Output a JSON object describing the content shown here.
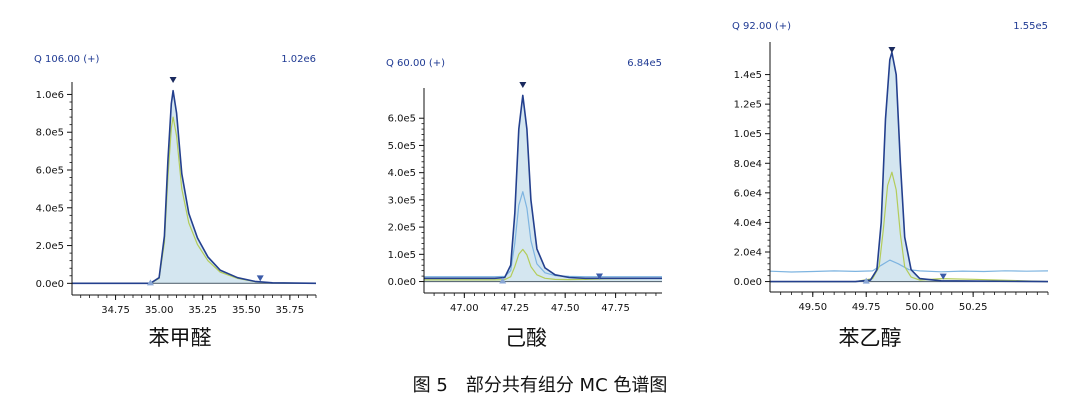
{
  "caption": "图 5　部分共有组分 MC 色谱图",
  "colors": {
    "outline": "#24408e",
    "fill": "#cfe3ee",
    "trace_light": "#7eb4e0",
    "trace_green": "#b3cc5a",
    "baseline": "#5d6c78",
    "marker": "#3b5ba8",
    "marker_light": "#8aa7d6",
    "label_blue": "#1f3a93"
  },
  "chart_data": [
    {
      "type": "line",
      "name": "苯甲醛",
      "ion_label": "Q 106.00 (+)",
      "max_label": "1.02e6",
      "xlim": [
        34.5,
        35.9
      ],
      "ylim": [
        -30000,
        1050000
      ],
      "x_ticks": [
        "34.75",
        "35.00",
        "35.25",
        "35.50",
        "35.75"
      ],
      "y_ticks": [
        "0.0e0",
        "2.0e5",
        "4.0e5",
        "6.0e5",
        "8.0e5",
        "1.0e6"
      ],
      "grid": false,
      "peak_markers": [
        35.08
      ],
      "range_markers": [
        34.95,
        35.58
      ],
      "series": [
        {
          "role": "total",
          "x": [
            34.5,
            34.95,
            35.0,
            35.03,
            35.05,
            35.07,
            35.08,
            35.1,
            35.13,
            35.17,
            35.22,
            35.28,
            35.35,
            35.45,
            35.55,
            35.65,
            35.9
          ],
          "y": [
            0,
            0,
            30000,
            250000,
            650000,
            950000,
            1020000,
            900000,
            580000,
            370000,
            240000,
            140000,
            70000,
            30000,
            10000,
            3000,
            0
          ]
        },
        {
          "role": "sub",
          "x": [
            34.5,
            34.95,
            35.0,
            35.03,
            35.05,
            35.07,
            35.08,
            35.1,
            35.13,
            35.17,
            35.22,
            35.28,
            35.35,
            35.45,
            35.55,
            35.65,
            35.9
          ],
          "y": [
            0,
            0,
            26000,
            215000,
            560000,
            820000,
            880000,
            780000,
            500000,
            320000,
            205000,
            120000,
            60000,
            26000,
            9000,
            2500,
            0
          ]
        }
      ]
    },
    {
      "type": "line",
      "name": "己酸",
      "ion_label": "Q 60.00 (+)",
      "max_label": "6.84e5",
      "xlim": [
        46.8,
        47.98
      ],
      "ylim": [
        -20000,
        700000
      ],
      "x_ticks": [
        "47.00",
        "47.25",
        "47.50",
        "47.75"
      ],
      "y_ticks": [
        "0.0e0",
        "1.0e5",
        "2.0e5",
        "3.0e5",
        "4.0e5",
        "5.0e5",
        "6.0e5"
      ],
      "grid": false,
      "peak_markers": [
        47.29
      ],
      "range_markers": [
        47.19,
        47.67
      ],
      "series": [
        {
          "role": "total",
          "x": [
            46.8,
            47.0,
            47.15,
            47.2,
            47.23,
            47.25,
            47.27,
            47.29,
            47.31,
            47.33,
            47.36,
            47.4,
            47.45,
            47.52,
            47.6,
            47.7,
            47.98
          ],
          "y": [
            12000,
            12000,
            12000,
            15000,
            60000,
            250000,
            560000,
            684000,
            560000,
            300000,
            120000,
            50000,
            25000,
            15000,
            12000,
            12000,
            12000
          ]
        },
        {
          "role": "light",
          "x": [
            46.8,
            47.0,
            47.15,
            47.2,
            47.23,
            47.25,
            47.27,
            47.29,
            47.31,
            47.33,
            47.36,
            47.4,
            47.45,
            47.52,
            47.6,
            47.7,
            47.98
          ],
          "y": [
            18000,
            18000,
            18000,
            19000,
            40000,
            140000,
            280000,
            330000,
            270000,
            150000,
            65000,
            32000,
            22000,
            19000,
            18000,
            18000,
            18000
          ]
        },
        {
          "role": "green",
          "x": [
            46.8,
            47.0,
            47.15,
            47.2,
            47.23,
            47.25,
            47.27,
            47.29,
            47.31,
            47.33,
            47.36,
            47.4,
            47.45,
            47.52,
            47.6,
            47.7,
            47.98
          ],
          "y": [
            6000,
            6000,
            6000,
            7000,
            18000,
            55000,
            100000,
            118000,
            98000,
            55000,
            25000,
            12000,
            8000,
            7000,
            8000,
            10000,
            12000
          ]
        }
      ]
    },
    {
      "type": "line",
      "name": "苯乙醇",
      "ion_label": "Q 92.00 (+)",
      "max_label": "1.55e5",
      "xlim": [
        49.3,
        50.6
      ],
      "ylim": [
        -3000,
        160000
      ],
      "x_ticks": [
        "49.50",
        "49.75",
        "50.00",
        "50.25"
      ],
      "y_ticks": [
        "0.0e0",
        "2.0e4",
        "4.0e4",
        "6.0e4",
        "8.0e4",
        "1.0e5",
        "1.2e5",
        "1.4e5"
      ],
      "grid": false,
      "peak_markers": [
        49.87
      ],
      "range_markers": [
        49.75,
        50.11
      ],
      "series": [
        {
          "role": "total",
          "x": [
            49.3,
            49.7,
            49.77,
            49.8,
            49.82,
            49.84,
            49.86,
            49.87,
            49.89,
            49.91,
            49.93,
            49.96,
            50.0,
            50.1,
            50.6
          ],
          "y": [
            0,
            0,
            1000,
            8000,
            40000,
            110000,
            150000,
            155000,
            140000,
            80000,
            30000,
            8000,
            2000,
            500,
            0
          ]
        },
        {
          "role": "light",
          "x": [
            49.3,
            49.4,
            49.5,
            49.6,
            49.7,
            49.78,
            49.82,
            49.86,
            49.9,
            49.95,
            50.0,
            50.1,
            50.2,
            50.3,
            50.4,
            50.5,
            50.6
          ],
          "y": [
            7000,
            6500,
            6800,
            7200,
            6900,
            7200,
            11000,
            14500,
            12000,
            8000,
            7200,
            6600,
            7100,
            6800,
            7300,
            7000,
            7200
          ]
        },
        {
          "role": "green",
          "x": [
            49.3,
            49.7,
            49.78,
            49.81,
            49.83,
            49.85,
            49.87,
            49.89,
            49.91,
            49.93,
            49.96,
            50.0,
            50.1,
            50.25,
            50.6
          ],
          "y": [
            0,
            0,
            2000,
            10000,
            35000,
            65000,
            74000,
            62000,
            32000,
            10000,
            3000,
            1000,
            2000,
            1500,
            0
          ]
        }
      ]
    }
  ]
}
